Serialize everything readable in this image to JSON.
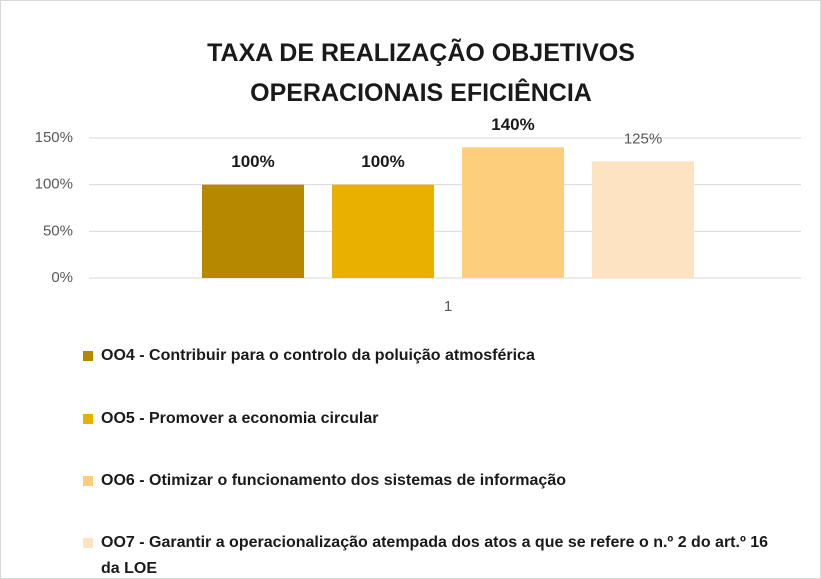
{
  "chart_data": {
    "type": "bar",
    "title": "TAXA DE REALIZAÇÃO OBJETIVOS OPERACIONAIS EFICIÊNCIA",
    "categories": [
      "1"
    ],
    "series": [
      {
        "name": "OO4 - Contribuir para o controlo da poluição atmosférica",
        "color": "#b58800",
        "values": [
          100
        ],
        "value_labels": [
          "100%"
        ]
      },
      {
        "name": "OO5 - Promover a economia circular",
        "color": "#e9b000",
        "values": [
          100
        ],
        "value_labels": [
          "100%"
        ]
      },
      {
        "name": "OO6 - Otimizar o funcionamento dos sistemas de informação",
        "color": "#fdcf7c",
        "values": [
          140
        ],
        "value_labels": [
          "140%"
        ]
      },
      {
        "name": "OO7 - Garantir a operacionalização atempada dos atos a que se refere o n.º 2 do art.º 16 da LOE",
        "color": "#fde3c2",
        "values": [
          125
        ],
        "value_labels": [
          "125%"
        ]
      }
    ],
    "ylim": [
      0,
      150
    ],
    "yticks": [
      {
        "value": 0,
        "label": "0%"
      },
      {
        "value": 50,
        "label": "50%"
      },
      {
        "value": 100,
        "label": "100%"
      },
      {
        "value": 150,
        "label": "150%"
      }
    ],
    "grid": true,
    "legend": "bottom"
  }
}
